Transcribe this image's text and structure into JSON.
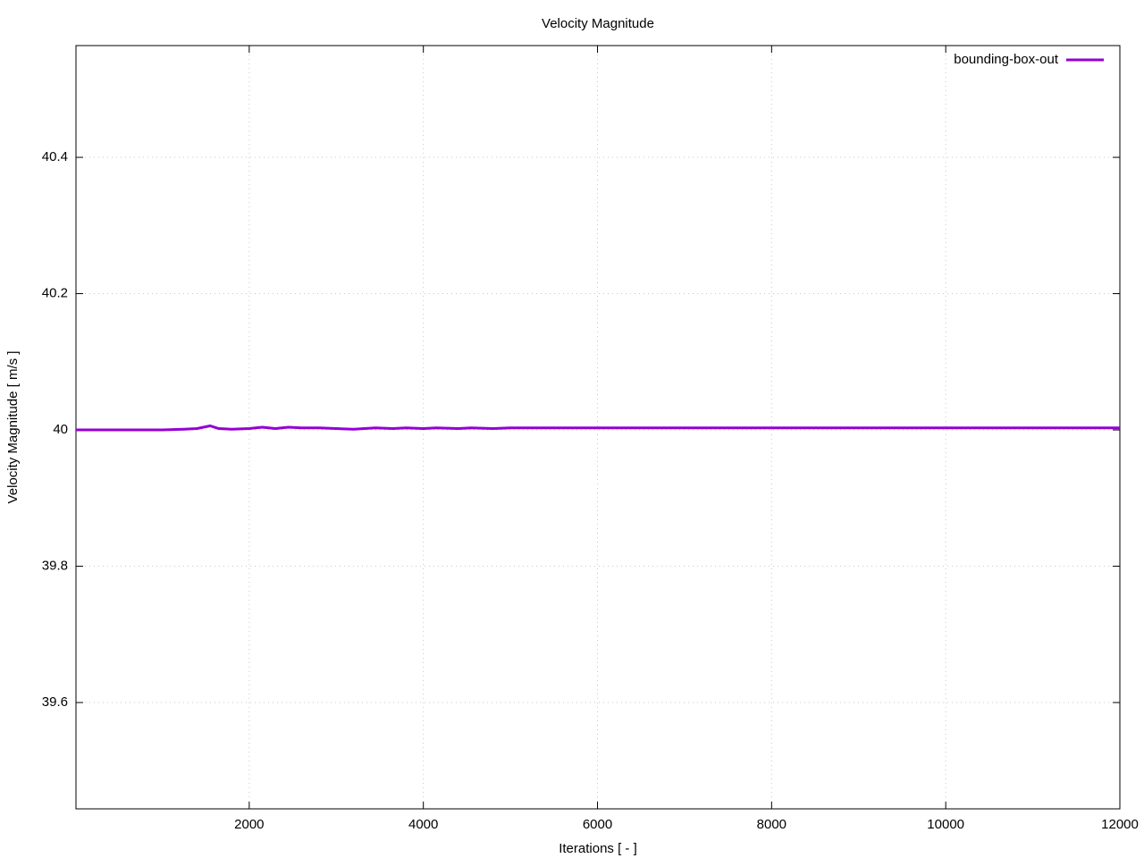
{
  "chart_data": {
    "type": "line",
    "title": "Velocity Magnitude",
    "x_label": "Iterations [ - ]",
    "y_label": "Velocity Magnitude [ m/s ]",
    "x": [
      10,
      250,
      500,
      750,
      1000,
      1250,
      1400,
      1550,
      1650,
      1800,
      2000,
      2150,
      2300,
      2450,
      2600,
      2800,
      3000,
      3200,
      3450,
      3650,
      3800,
      4000,
      4150,
      4400,
      4550,
      4800,
      5000,
      6000,
      7000,
      8000,
      9000,
      10000,
      11000,
      12000
    ],
    "series": [
      {
        "name": "bounding-box-out",
        "color": "#9400d3",
        "values": [
          40.0,
          40.0,
          40.0,
          40.0,
          40.0,
          40.001,
          40.002,
          40.006,
          40.002,
          40.001,
          40.002,
          40.004,
          40.002,
          40.004,
          40.003,
          40.003,
          40.002,
          40.001,
          40.003,
          40.002,
          40.003,
          40.002,
          40.003,
          40.002,
          40.003,
          40.002,
          40.003,
          40.003,
          40.003,
          40.003,
          40.003,
          40.003,
          40.003,
          40.003
        ]
      }
    ],
    "xlim": [
      10,
      12000
    ],
    "xticks": [
      2000,
      4000,
      6000,
      8000,
      10000,
      12000
    ],
    "ylim": [
      39.444,
      40.564
    ],
    "yticks": [
      39.6,
      39.8,
      40,
      40.2,
      40.4
    ],
    "grid": true,
    "legend": "top-right"
  }
}
